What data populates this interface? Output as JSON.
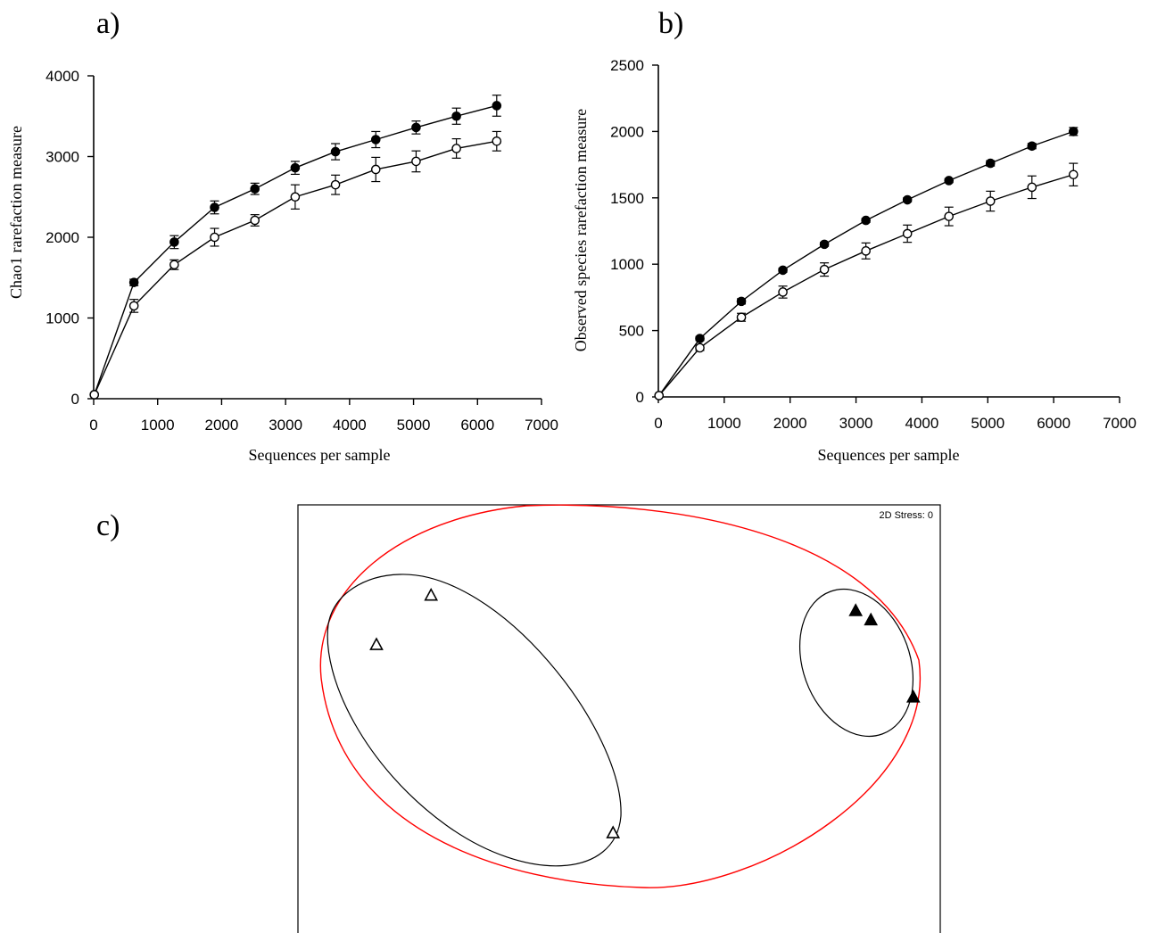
{
  "chart_data": [
    {
      "panel": "a)",
      "type": "line",
      "xlabel": "Sequences per sample",
      "ylabel": "Chao1 rarefaction measure",
      "xlim": [
        0,
        7000
      ],
      "ylim": [
        0,
        4000
      ],
      "xticks": [
        0,
        1000,
        2000,
        3000,
        4000,
        5000,
        6000,
        7000
      ],
      "yticks": [
        0,
        1000,
        2000,
        3000,
        4000
      ],
      "x": [
        10,
        630,
        1260,
        1890,
        2520,
        3150,
        3780,
        4410,
        5040,
        5670,
        6300
      ],
      "series": [
        {
          "marker": "filled-circle",
          "values": [
            50,
            1440,
            1940,
            2370,
            2600,
            2860,
            3060,
            3210,
            3360,
            3500,
            3630
          ],
          "errors": [
            0,
            40,
            80,
            80,
            70,
            80,
            100,
            100,
            80,
            100,
            130
          ]
        },
        {
          "marker": "open-circle",
          "values": [
            50,
            1150,
            1660,
            2000,
            2210,
            2500,
            2650,
            2840,
            2940,
            3100,
            3190
          ],
          "errors": [
            0,
            80,
            60,
            110,
            70,
            150,
            120,
            150,
            130,
            120,
            120
          ]
        }
      ]
    },
    {
      "panel": "b)",
      "type": "line",
      "xlabel": "Sequences per sample",
      "ylabel": "Observed species rarefaction measure",
      "xlim": [
        0,
        7000
      ],
      "ylim": [
        0,
        2500
      ],
      "xticks": [
        0,
        1000,
        2000,
        3000,
        4000,
        5000,
        6000,
        7000
      ],
      "yticks": [
        0,
        500,
        1000,
        1500,
        2000,
        2500
      ],
      "x": [
        10,
        630,
        1260,
        1890,
        2520,
        3150,
        3780,
        4410,
        5040,
        5670,
        6300
      ],
      "series": [
        {
          "marker": "filled-circle",
          "values": [
            10,
            440,
            720,
            955,
            1150,
            1330,
            1485,
            1630,
            1760,
            1890,
            2000
          ],
          "errors": [
            0,
            15,
            20,
            15,
            15,
            15,
            15,
            15,
            20,
            20,
            30
          ]
        },
        {
          "marker": "open-circle",
          "values": [
            10,
            370,
            600,
            790,
            960,
            1100,
            1230,
            1360,
            1475,
            1580,
            1675
          ],
          "errors": [
            0,
            20,
            30,
            45,
            50,
            60,
            65,
            70,
            75,
            85,
            85
          ]
        }
      ]
    },
    {
      "panel": "c)",
      "type": "scatter",
      "annotation": "2D Stress: 0",
      "groups": [
        {
          "marker": "open-triangle",
          "points": [
            [
              -0.62,
              0.82
            ],
            [
              -0.8,
              0.5
            ],
            [
              -0.02,
              -0.72
            ]
          ]
        },
        {
          "marker": "filled-triangle",
          "points": [
            [
              0.78,
              0.72
            ],
            [
              0.83,
              0.66
            ],
            [
              0.97,
              0.16
            ]
          ]
        }
      ],
      "outlines": [
        {
          "color": "#ff0000",
          "encloses": "all samples"
        },
        {
          "color": "#000000",
          "encloses": "open-triangle group"
        },
        {
          "color": "#000000",
          "encloses": "filled-triangle group"
        }
      ]
    }
  ],
  "colors": {
    "axis": "#000000",
    "outer_outline": "#ff0000",
    "group_outline": "#000000"
  }
}
